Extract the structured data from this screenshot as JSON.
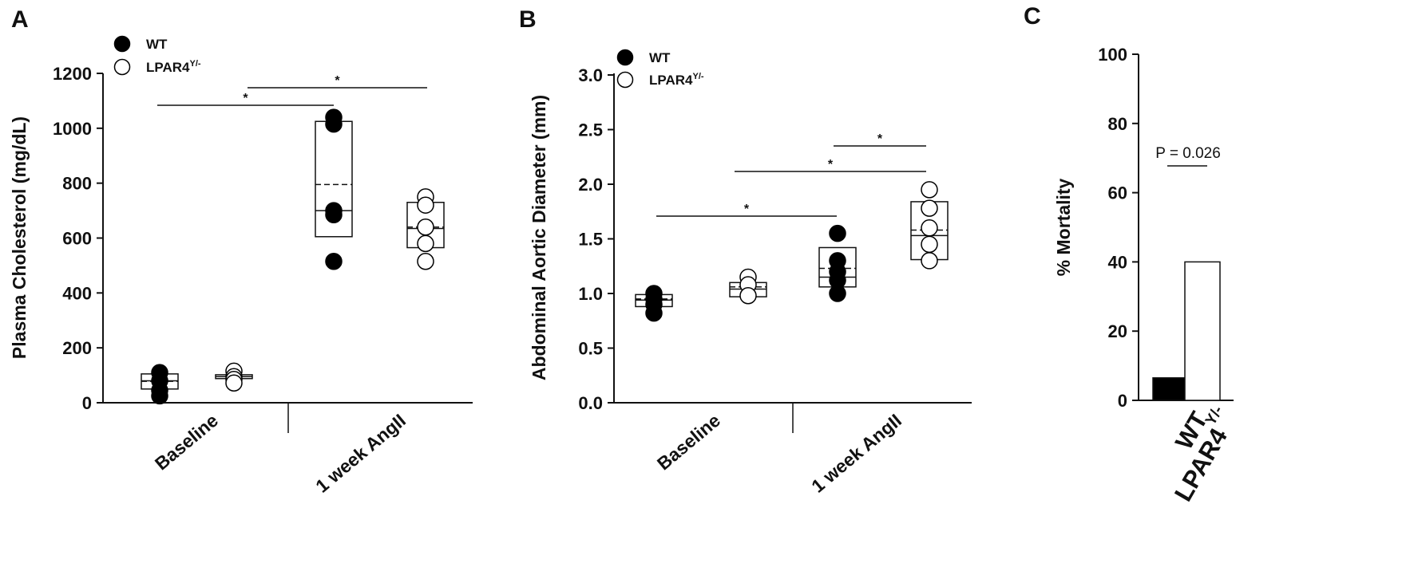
{
  "chart_data": [
    {
      "panel": "A",
      "type": "box",
      "ylabel": "Plasma Cholesterol (mg/dL)",
      "ylim": [
        0,
        1200
      ],
      "yticks": [
        "0",
        "200",
        "400",
        "600",
        "800",
        "1000",
        "1200"
      ],
      "categories": [
        "Baseline",
        "1 week AngII"
      ],
      "legend": {
        "position": "top-left",
        "wt": "WT",
        "ko": "LPAR4",
        "ko_sup": "Y/-"
      },
      "groups": [
        {
          "category": "Baseline",
          "series": "WT",
          "q1": 50,
          "median": 80,
          "q3": 105,
          "mean": 78,
          "points": [
            110,
            80,
            45,
            25
          ]
        },
        {
          "category": "Baseline",
          "series": "LPAR4Y/-",
          "q1": 88,
          "median": 95,
          "q3": 102,
          "mean": 95,
          "points": [
            115,
            95,
            85,
            72
          ]
        },
        {
          "category": "1 week AngII",
          "series": "WT",
          "q1": 605,
          "median": 700,
          "q3": 1025,
          "mean": 795,
          "points": [
            1040,
            1015,
            700,
            685,
            515
          ]
        },
        {
          "category": "1 week AngII",
          "series": "LPAR4Y/-",
          "q1": 565,
          "median": 635,
          "q3": 730,
          "mean": 640,
          "points": [
            750,
            720,
            640,
            580,
            515
          ]
        }
      ],
      "significance": [
        {
          "label": "*"
        },
        {
          "label": "*"
        }
      ]
    },
    {
      "panel": "B",
      "type": "box",
      "ylabel": "Abdominal Aortic Diameter (mm)",
      "ylim": [
        0,
        3.0
      ],
      "yticks": [
        "0.0",
        "0.5",
        "1.0",
        "1.5",
        "2.0",
        "2.5",
        "3.0"
      ],
      "categories": [
        "Baseline",
        "1 week AngII"
      ],
      "legend": {
        "position": "top-left",
        "wt": "WT",
        "ko": "LPAR4",
        "ko_sup": "Y/-"
      },
      "groups": [
        {
          "category": "Baseline",
          "series": "WT",
          "q1": 0.88,
          "median": 0.94,
          "q3": 0.99,
          "mean": 0.95,
          "points": [
            1.0,
            0.95,
            0.9,
            0.82
          ]
        },
        {
          "category": "Baseline",
          "series": "LPAR4Y/-",
          "q1": 0.97,
          "median": 1.04,
          "q3": 1.1,
          "mean": 1.06,
          "points": [
            1.15,
            1.08,
            0.98
          ]
        },
        {
          "category": "1 week AngII",
          "series": "WT",
          "q1": 1.06,
          "median": 1.15,
          "q3": 1.42,
          "mean": 1.23,
          "points": [
            1.55,
            1.3,
            1.2,
            1.12,
            1.0
          ]
        },
        {
          "category": "1 week AngII",
          "series": "LPAR4Y/-",
          "q1": 1.31,
          "median": 1.53,
          "q3": 1.84,
          "mean": 1.58,
          "points": [
            1.95,
            1.78,
            1.6,
            1.45,
            1.3
          ]
        }
      ],
      "significance": [
        {
          "label": "*"
        },
        {
          "label": "*"
        },
        {
          "label": "*"
        }
      ]
    },
    {
      "panel": "C",
      "type": "bar",
      "ylabel": "% Mortality",
      "ylim": [
        0,
        100
      ],
      "yticks": [
        "0",
        "20",
        "40",
        "60",
        "80",
        "100"
      ],
      "categories": [
        "WT",
        "LPAR4"
      ],
      "category_sup": "Y/-",
      "values": [
        6.5,
        40
      ],
      "fills": [
        "#000000",
        "#ffffff"
      ],
      "annotation": "P = 0.026"
    }
  ]
}
